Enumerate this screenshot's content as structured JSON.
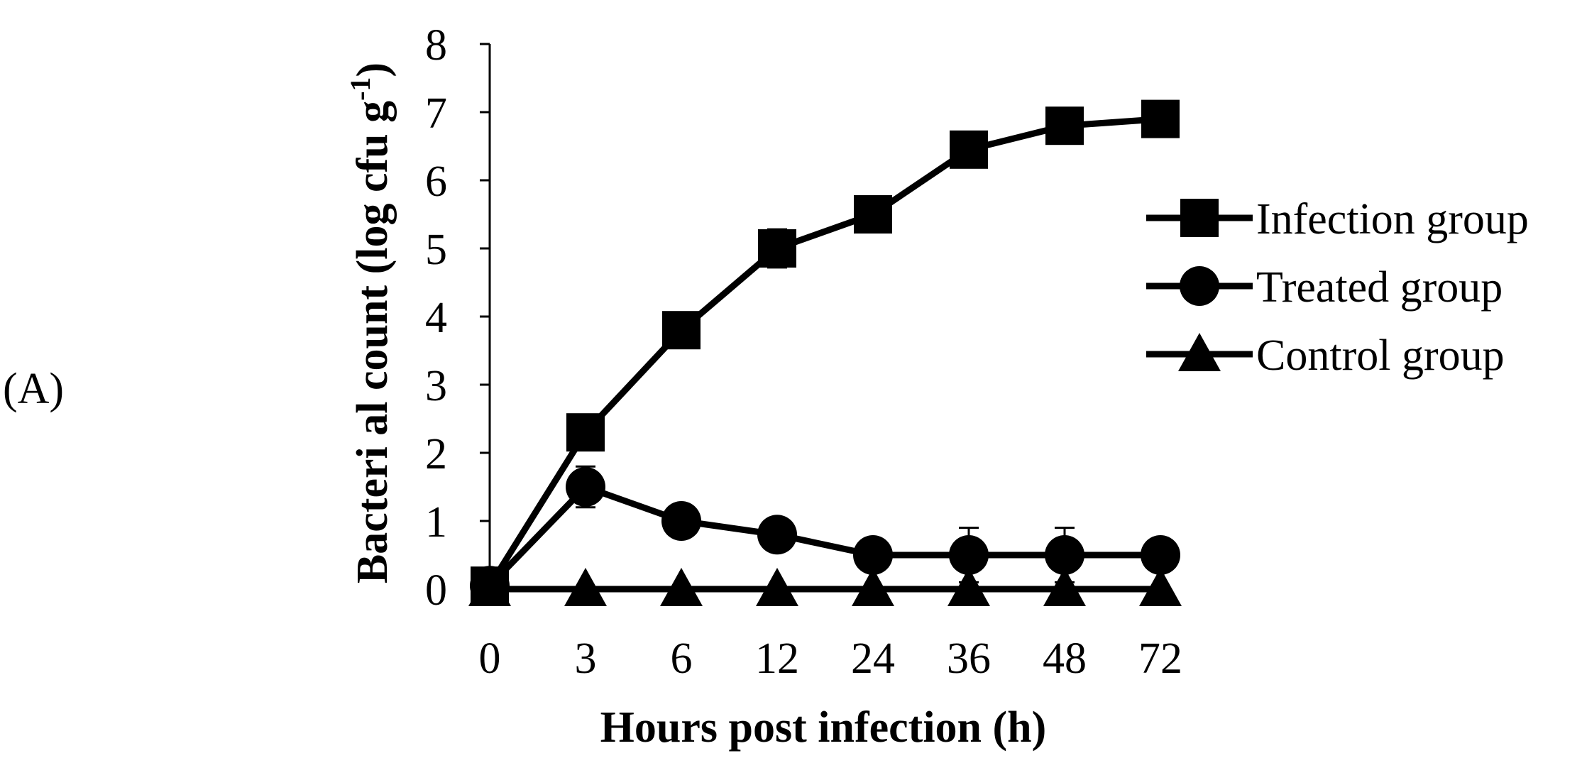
{
  "panel_label": "(A)",
  "chart_data": {
    "type": "line",
    "xlabel": "Hours post infection (h)",
    "ylabel_main": "Bacteri al count (log cfu g",
    "ylabel_sup": "-1",
    "ylabel_end": ")",
    "categories": [
      "0",
      "3",
      "6",
      "12",
      "24",
      "36",
      "48",
      "72"
    ],
    "ylim": [
      0,
      8
    ],
    "yticks": [
      "0",
      "1",
      "2",
      "3",
      "4",
      "5",
      "6",
      "7",
      "8"
    ],
    "grid": false,
    "legend_position": "right",
    "series": [
      {
        "name": "Infection group",
        "marker": "square",
        "values": [
          0.05,
          2.3,
          3.8,
          5.0,
          5.5,
          6.45,
          6.8,
          6.9
        ],
        "errors": [
          0,
          0.1,
          0.05,
          0.28,
          0.05,
          0.05,
          0.05,
          0.05
        ]
      },
      {
        "name": "Treated group",
        "marker": "circle",
        "values": [
          0.05,
          1.5,
          1.0,
          0.8,
          0.5,
          0.5,
          0.5,
          0.5
        ],
        "errors": [
          0,
          0.3,
          0,
          0,
          0,
          0.4,
          0.4,
          0
        ]
      },
      {
        "name": "Control group",
        "marker": "triangle",
        "values": [
          0,
          0,
          0,
          0,
          0,
          0,
          0,
          0
        ],
        "errors": [
          0,
          0,
          0,
          0,
          0,
          0,
          0,
          0
        ]
      }
    ],
    "colors": {
      "line": "#000000",
      "background": "#ffffff"
    }
  }
}
